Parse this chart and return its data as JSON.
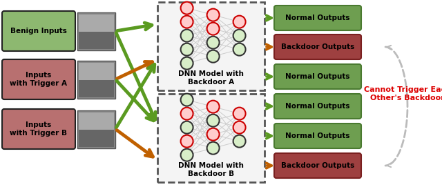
{
  "fig_width": 6.4,
  "fig_height": 2.71,
  "dpi": 100,
  "background": "#ffffff",
  "input_boxes": [
    {
      "label": "Benign Inputs",
      "color": "#8db870",
      "text_color": "black"
    },
    {
      "label": "Inputs\nwith Trigger A",
      "color": "#b87070",
      "text_color": "black"
    },
    {
      "label": "Inputs\nwith Trigger B",
      "color": "#b87070",
      "text_color": "black"
    }
  ],
  "dnn_A_label": "DNN Model with\nBackdoor A",
  "dnn_B_label": "DNN Model with\nBackdoor B",
  "output_labels": [
    "Normal Outputs",
    "Backdoor Outputs",
    "Normal Outputs",
    "Normal Outputs",
    "Normal Outputs",
    "Backdoor Outputs"
  ],
  "output_is_backdoor": [
    false,
    true,
    false,
    false,
    false,
    true
  ],
  "normal_box_color": "#6e9e50",
  "normal_box_edge": "#4a7a30",
  "backdoor_box_color": "#9e4040",
  "backdoor_box_edge": "#7a2020",
  "green_arrow_color": "#5a9a20",
  "orange_arrow_color": "#c06000",
  "gray_arc_color": "#bbbbbb",
  "cannot_trigger_text": "Cannot Trigger Each\nOther's Backdoor",
  "cannot_trigger_color": "#dd0000",
  "node_black_face": "#d8eec8",
  "node_black_edge": "#333333",
  "node_red_face": "#ffcccc",
  "node_red_edge": "#cc0000"
}
